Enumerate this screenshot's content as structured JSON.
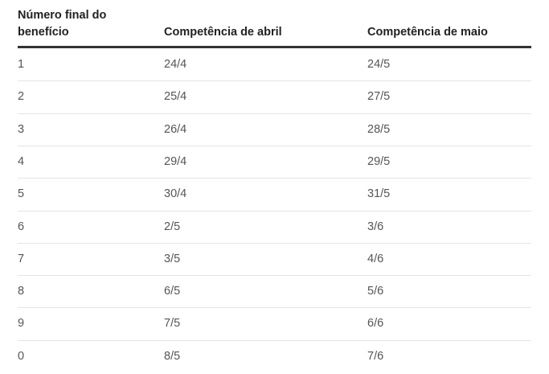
{
  "table": {
    "headers": [
      "Número final do benefício",
      "Competência de abril",
      "Competência de maio"
    ],
    "rows": [
      [
        "1",
        "24/4",
        "24/5"
      ],
      [
        "2",
        "25/4",
        "27/5"
      ],
      [
        "3",
        "26/4",
        "28/5"
      ],
      [
        "4",
        "29/4",
        "29/5"
      ],
      [
        "5",
        "30/4",
        "31/5"
      ],
      [
        "6",
        "2/5",
        "3/6"
      ],
      [
        "7",
        "3/5",
        "4/6"
      ],
      [
        "8",
        "6/5",
        "5/6"
      ],
      [
        "9",
        "7/5",
        "6/6"
      ],
      [
        "0",
        "8/5",
        "7/6"
      ]
    ]
  }
}
